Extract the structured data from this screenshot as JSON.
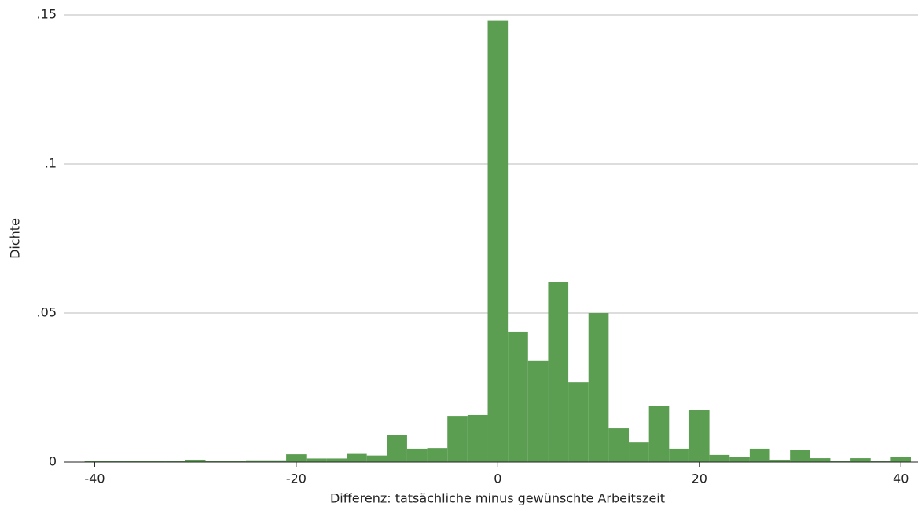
{
  "chart_data": {
    "type": "histogram",
    "x_label": "Differenz: tatsächliche minus gewünschte Arbeitszeit",
    "y_label": "Dichte",
    "bins": [
      -41,
      -39,
      -37,
      -35,
      -33,
      -31,
      -29,
      -27,
      -25,
      -23,
      -21,
      -19,
      -17,
      -15,
      -13,
      -11,
      -9,
      -7,
      -5,
      -3,
      -1,
      1,
      3,
      5,
      7,
      9,
      11,
      13,
      15,
      17,
      19,
      21,
      23,
      25,
      27,
      29,
      31,
      33,
      35,
      37,
      39,
      41
    ],
    "values": [
      0.0003,
      0.0003,
      0.0003,
      0.0003,
      0.0003,
      0.0008,
      0.0004,
      0.0004,
      0.0006,
      0.0006,
      0.0026,
      0.0012,
      0.0012,
      0.003,
      0.0022,
      0.0092,
      0.0045,
      0.0047,
      0.0155,
      0.0158,
      0.148,
      0.0437,
      0.034,
      0.0603,
      0.0268,
      0.05,
      0.0113,
      0.0068,
      0.0187,
      0.0045,
      0.0176,
      0.0024,
      0.0016,
      0.0045,
      0.0008,
      0.0042,
      0.0013,
      0.0005,
      0.0013,
      0.0005,
      0.0016
    ],
    "color": "#5b9e52",
    "xlim": [
      -43,
      41.7
    ],
    "ylim": [
      0,
      0.15
    ],
    "xticks": [
      -40,
      -20,
      0,
      20,
      40
    ],
    "yticks": [
      0,
      {
        "value": 0.05,
        "label": ".05"
      },
      {
        "value": 0.1,
        "label": ".1"
      },
      {
        "value": 0.15,
        "label": ".15"
      }
    ],
    "grid": true
  }
}
